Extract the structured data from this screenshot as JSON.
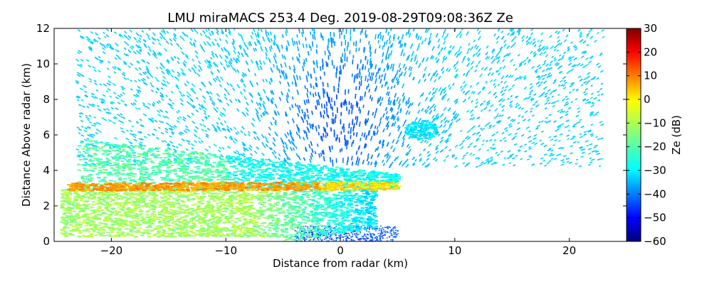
{
  "chart_data": {
    "type": "heatmap",
    "title": "LMU miraMACS 253.4 Deg. 2019-08-29T09:08:36Z  Ze",
    "xlabel": "Distance from radar (km)",
    "ylabel": "Distance Above radar  (km)",
    "xlim": [
      -25,
      25
    ],
    "ylim": [
      0,
      12
    ],
    "x_ticks": [
      -20,
      -10,
      0,
      10,
      20
    ],
    "y_ticks": [
      0,
      2,
      4,
      6,
      8,
      10,
      12
    ],
    "grid": false,
    "colorbar": {
      "label": "Ze (dB)",
      "range": [
        -60,
        30
      ],
      "ticks": [
        30,
        20,
        10,
        0,
        -10,
        -20,
        -30,
        -40,
        -50,
        -60
      ],
      "colormap": "jet"
    },
    "features": [
      {
        "name": "bright band",
        "x_range": [
          -24,
          5
        ],
        "height_km": 3.0,
        "ze_db": 5
      },
      {
        "name": "stratiform precipitation",
        "x_range": [
          -24.5,
          3
        ],
        "y_range": [
          0.3,
          3.0
        ],
        "ze_db": -12
      },
      {
        "name": "ice layer",
        "x_range": [
          -23,
          5
        ],
        "y_range": [
          3.0,
          5.8
        ],
        "ze_db": -22
      },
      {
        "name": "sparse echoes",
        "x_range": [
          -23,
          23
        ],
        "y_range": [
          1.5,
          12
        ],
        "ze_db": -30
      },
      {
        "name": "isolated cloud",
        "x_center": 7,
        "y_center": 6.3,
        "ze_db": -28
      }
    ]
  }
}
